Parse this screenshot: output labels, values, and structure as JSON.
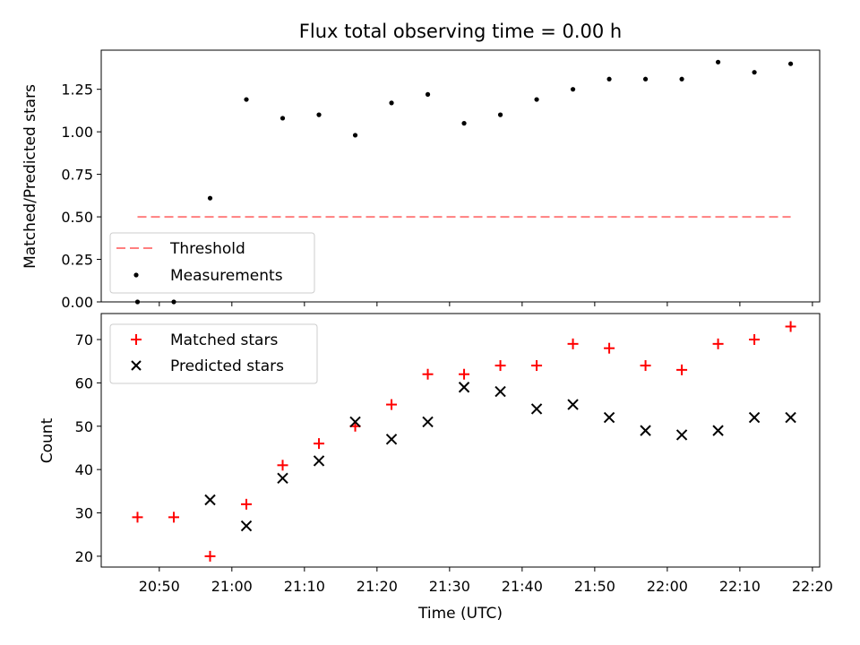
{
  "chart_data": [
    {
      "type": "scatter",
      "title": "Flux total observing time = 0.00 h",
      "xlabel": "",
      "ylabel": "Matched/Predicted stars",
      "ylim": [
        0,
        1.48
      ],
      "xlim": [
        "20:42",
        "22:21"
      ],
      "yticks": [
        0.0,
        0.25,
        0.5,
        0.75,
        1.0,
        1.25
      ],
      "ytick_labels": [
        "0.00",
        "0.25",
        "0.50",
        "0.75",
        "1.00",
        "1.25"
      ],
      "grid": false,
      "legend_position": "lower-left",
      "series": [
        {
          "name": "Threshold",
          "kind": "line",
          "style": "dashed",
          "color": "#ff7f7f",
          "x": [
            "20:47",
            "22:17"
          ],
          "values": [
            0.5,
            0.5
          ]
        },
        {
          "name": "Measurements",
          "kind": "scatter",
          "marker": "dot",
          "color": "#000000",
          "x": [
            "20:47",
            "20:52",
            "20:57",
            "21:02",
            "21:07",
            "21:12",
            "21:17",
            "21:22",
            "21:27",
            "21:32",
            "21:37",
            "21:42",
            "21:47",
            "21:52",
            "21:57",
            "22:02",
            "22:07",
            "22:12",
            "22:17"
          ],
          "values": [
            0.0,
            0.0,
            0.61,
            1.19,
            1.08,
            1.1,
            0.98,
            1.17,
            1.22,
            1.05,
            1.1,
            1.19,
            1.25,
            1.31,
            1.31,
            1.31,
            1.41,
            1.35,
            1.4
          ]
        }
      ]
    },
    {
      "type": "scatter",
      "title": "",
      "xlabel": "Time (UTC)",
      "ylabel": "Count",
      "ylim": [
        17.5,
        76
      ],
      "xlim": [
        "20:42",
        "22:21"
      ],
      "yticks": [
        20,
        30,
        40,
        50,
        60,
        70
      ],
      "ytick_labels": [
        "20",
        "30",
        "40",
        "50",
        "60",
        "70"
      ],
      "xtick_labels": [
        "20:50",
        "21:00",
        "21:10",
        "21:20",
        "21:30",
        "21:40",
        "21:50",
        "22:00",
        "22:10",
        "22:20"
      ],
      "grid": false,
      "legend_position": "upper-left",
      "series": [
        {
          "name": "Matched stars",
          "kind": "scatter",
          "marker": "plus",
          "color": "#ff0000",
          "x": [
            "20:47",
            "20:52",
            "20:57",
            "21:02",
            "21:07",
            "21:12",
            "21:17",
            "21:22",
            "21:27",
            "21:32",
            "21:37",
            "21:42",
            "21:47",
            "21:52",
            "21:57",
            "22:02",
            "22:07",
            "22:12",
            "22:17"
          ],
          "values": [
            29,
            29,
            20,
            32,
            41,
            46,
            50,
            55,
            62,
            62,
            64,
            64,
            69,
            68,
            64,
            63,
            69,
            70,
            73
          ]
        },
        {
          "name": "Predicted stars",
          "kind": "scatter",
          "marker": "x",
          "color": "#000000",
          "x": [
            "20:57",
            "21:02",
            "21:07",
            "21:12",
            "21:17",
            "21:22",
            "21:27",
            "21:32",
            "21:37",
            "21:42",
            "21:47",
            "21:52",
            "21:57",
            "22:02",
            "22:07",
            "22:12",
            "22:17"
          ],
          "values": [
            33,
            27,
            38,
            42,
            51,
            47,
            51,
            59,
            58,
            54,
            55,
            52,
            49,
            48,
            49,
            52,
            52
          ]
        }
      ]
    }
  ]
}
